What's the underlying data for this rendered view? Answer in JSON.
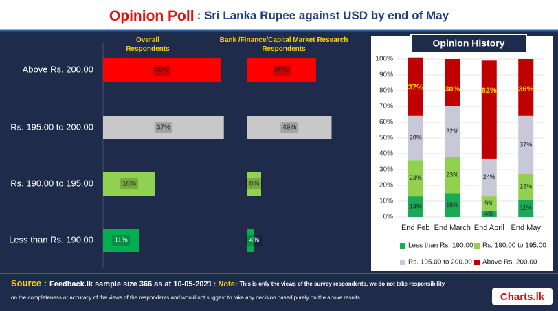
{
  "header": {
    "title_lead": "Opinion Poll",
    "title_rest": ": Sri Lanka Rupee against USD by end of May"
  },
  "chart_data": [
    {
      "type": "hbar",
      "title": "Overall Respondents",
      "categories": [
        "Above Rs. 200.00",
        "Rs. 195.00 to 200.00",
        "Rs. 190.00 to 195.00",
        "Less than Rs. 190.00"
      ],
      "values": [
        36,
        37,
        16,
        11
      ],
      "value_labels": [
        "36%",
        "37%",
        "16%",
        "11%"
      ],
      "colors": [
        "#ff0000",
        "#c8c8c8",
        "#92d050",
        "#00b050"
      ]
    },
    {
      "type": "hbar",
      "title": "Bank /Finance/Capital Market Research Respondents",
      "values": [
        40,
        49,
        8,
        4
      ],
      "value_labels": [
        "40%",
        "49%",
        "8%",
        "4%"
      ],
      "colors": [
        "#ff0000",
        "#c8c8c8",
        "#92d050",
        "#00b050"
      ]
    },
    {
      "type": "stacked_bar",
      "title": "Opinion History",
      "categories": [
        "End Feb",
        "End March",
        "End April",
        "End May"
      ],
      "ylim": [
        0,
        100
      ],
      "yticks": [
        {
          "value": 0,
          "label": "0%"
        },
        {
          "value": 10,
          "label": "10%"
        },
        {
          "value": 20,
          "label": "20%"
        },
        {
          "value": 30,
          "label": "30%"
        },
        {
          "value": 40,
          "label": "40%"
        },
        {
          "value": 50,
          "label": "50%"
        },
        {
          "value": 60,
          "label": "60%"
        },
        {
          "value": 70,
          "label": "70%"
        },
        {
          "value": 80,
          "label": "80%"
        },
        {
          "value": 90,
          "label": "90%"
        },
        {
          "value": 100,
          "label": "100%"
        }
      ],
      "grid": true,
      "series": [
        {
          "name": "Less than Rs. 190.00",
          "color": "#1aaa55",
          "values": [
            13,
            15,
            4,
            11
          ],
          "value_labels": [
            "13%",
            "15%",
            "4%",
            "11%"
          ]
        },
        {
          "name": "Rs. 190.00 to 195.00",
          "color": "#92d050",
          "values": [
            23,
            23,
            9,
            16
          ],
          "value_labels": [
            "23%",
            "23%",
            "9%",
            "16%"
          ]
        },
        {
          "name": "Rs. 195.00 to 200.00",
          "color": "#c8c8d8",
          "values": [
            28,
            32,
            24,
            37
          ],
          "value_labels": [
            "28%",
            "32%",
            "24%",
            "37%"
          ]
        },
        {
          "name": "Above Rs. 200.00",
          "color": "#c00000",
          "values": [
            37,
            30,
            62,
            36
          ],
          "value_labels": [
            "37%",
            "30%",
            "62%",
            "36%"
          ]
        }
      ]
    }
  ],
  "footer": {
    "source_label": "Source :",
    "source_text": "Feedback.lk sample size 366 as at 10-05-2021",
    "note_label": ": Note:",
    "note_line1": "This is only the views of the survey respondents, we do not take responsibility",
    "note_line2": "on the completeness or accuracy of the views  of the respondents and  would not suggest to take any decision based purely on the above results",
    "logo": "Charts.lk"
  }
}
